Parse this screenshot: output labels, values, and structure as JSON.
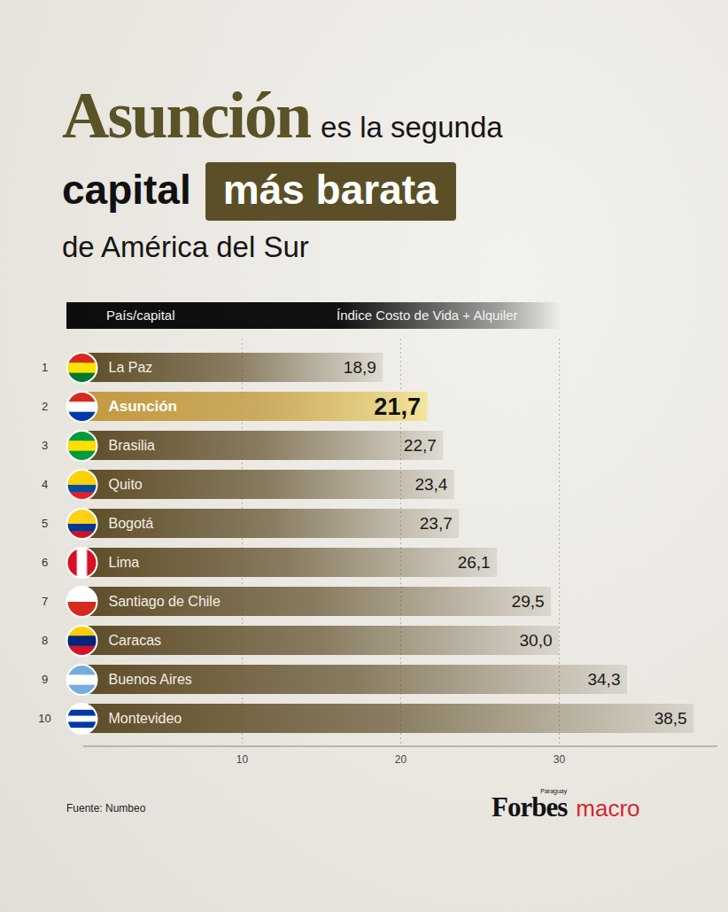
{
  "chart_data": {
    "type": "bar",
    "orientation": "horizontal",
    "title": "Asunción es la segunda capital más barata de América del Sur",
    "y_label": "País/capital",
    "x_label": "Índice Costo de Vida + Alquiler",
    "categories": [
      "La Paz",
      "Asunción",
      "Brasilia",
      "Quito",
      "Bogotá",
      "Lima",
      "Santiago de Chile",
      "Caracas",
      "Buenos Aires",
      "Montevideo"
    ],
    "ranks": [
      1,
      2,
      3,
      4,
      5,
      6,
      7,
      8,
      9,
      10
    ],
    "values": [
      18.9,
      21.7,
      22.7,
      23.4,
      23.7,
      26.1,
      29.5,
      30.0,
      34.3,
      38.5
    ],
    "value_labels": [
      "18,9",
      "21,7",
      "22,7",
      "23,4",
      "23,7",
      "26,1",
      "29,5",
      "30,0",
      "34,3",
      "38,5"
    ],
    "data_labels": true,
    "colors": [
      "#5e4d28",
      "#c29a3f",
      "#5e4d28",
      "#5e4d28",
      "#5e4d28",
      "#5e4d28",
      "#5e4d28",
      "#5e4d28",
      "#5e4d28",
      "#5e4d28"
    ],
    "xlim": [
      0,
      40
    ],
    "xticks": [
      10,
      20,
      30
    ],
    "grid": true,
    "source": "Fuente: Numbeo",
    "brand": [
      "Forbes",
      "Paraguay",
      "macro"
    ]
  }
}
